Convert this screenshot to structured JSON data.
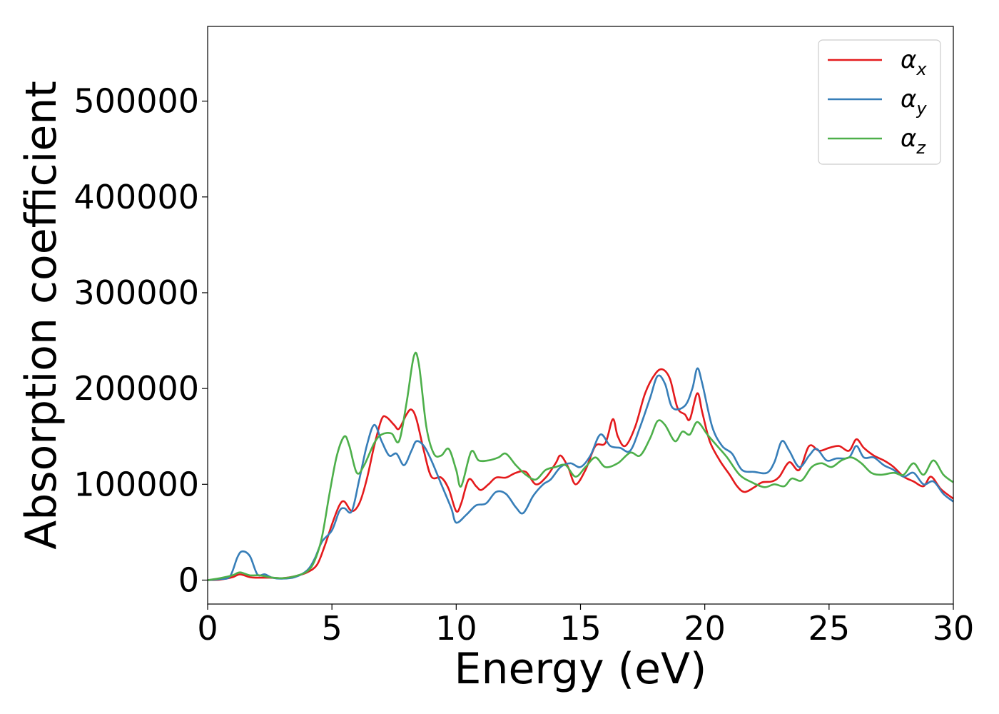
{
  "chart_data": {
    "type": "line",
    "title": "",
    "xlabel": "Energy (eV)",
    "ylabel": "Absorption coefficient",
    "xlim": [
      0,
      30
    ],
    "ylim": [
      -25000,
      578000
    ],
    "xticks": [
      0,
      5,
      10,
      15,
      20,
      25,
      30
    ],
    "yticks": [
      0,
      100000,
      200000,
      300000,
      400000,
      500000
    ],
    "grid": false,
    "legend_position": "top-right",
    "series": [
      {
        "name": "α_x",
        "legend_base": "α",
        "legend_sub": "x",
        "color": "#e41a1c",
        "points": [
          [
            0,
            0
          ],
          [
            0.5,
            500
          ],
          [
            1,
            3000
          ],
          [
            1.3,
            6000
          ],
          [
            1.7,
            3000
          ],
          [
            2,
            2500
          ],
          [
            2.5,
            2500
          ],
          [
            3,
            2000
          ],
          [
            3.5,
            4000
          ],
          [
            4,
            8000
          ],
          [
            4.4,
            16000
          ],
          [
            4.7,
            35000
          ],
          [
            5,
            58000
          ],
          [
            5.3,
            78000
          ],
          [
            5.5,
            82000
          ],
          [
            5.8,
            72000
          ],
          [
            6.1,
            80000
          ],
          [
            6.4,
            105000
          ],
          [
            6.7,
            140000
          ],
          [
            7,
            168000
          ],
          [
            7.2,
            170000
          ],
          [
            7.5,
            162000
          ],
          [
            7.7,
            158000
          ],
          [
            8,
            173000
          ],
          [
            8.2,
            178000
          ],
          [
            8.4,
            168000
          ],
          [
            8.7,
            135000
          ],
          [
            9,
            108000
          ],
          [
            9.4,
            107000
          ],
          [
            9.7,
            95000
          ],
          [
            10,
            72000
          ],
          [
            10.2,
            80000
          ],
          [
            10.5,
            105000
          ],
          [
            10.8,
            98000
          ],
          [
            11,
            94000
          ],
          [
            11.3,
            100000
          ],
          [
            11.6,
            107000
          ],
          [
            12,
            107000
          ],
          [
            12.4,
            112000
          ],
          [
            12.8,
            113000
          ],
          [
            13.2,
            100000
          ],
          [
            13.6,
            107000
          ],
          [
            14,
            122000
          ],
          [
            14.2,
            130000
          ],
          [
            14.5,
            118000
          ],
          [
            14.8,
            100000
          ],
          [
            15.2,
            115000
          ],
          [
            15.6,
            140000
          ],
          [
            16,
            143000
          ],
          [
            16.3,
            168000
          ],
          [
            16.5,
            150000
          ],
          [
            16.8,
            140000
          ],
          [
            17.2,
            160000
          ],
          [
            17.6,
            195000
          ],
          [
            18,
            215000
          ],
          [
            18.3,
            220000
          ],
          [
            18.6,
            210000
          ],
          [
            18.9,
            180000
          ],
          [
            19.2,
            173000
          ],
          [
            19.4,
            168000
          ],
          [
            19.7,
            195000
          ],
          [
            19.9,
            175000
          ],
          [
            20.2,
            145000
          ],
          [
            20.6,
            125000
          ],
          [
            21,
            110000
          ],
          [
            21.3,
            98000
          ],
          [
            21.6,
            92000
          ],
          [
            22,
            97000
          ],
          [
            22.3,
            102000
          ],
          [
            22.7,
            103000
          ],
          [
            23,
            108000
          ],
          [
            23.4,
            123000
          ],
          [
            23.8,
            115000
          ],
          [
            24.2,
            140000
          ],
          [
            24.6,
            135000
          ],
          [
            25,
            138000
          ],
          [
            25.4,
            140000
          ],
          [
            25.8,
            135000
          ],
          [
            26.1,
            147000
          ],
          [
            26.4,
            138000
          ],
          [
            26.8,
            130000
          ],
          [
            27.2,
            125000
          ],
          [
            27.6,
            118000
          ],
          [
            28,
            108000
          ],
          [
            28.4,
            103000
          ],
          [
            28.8,
            98000
          ],
          [
            29.1,
            108000
          ],
          [
            29.5,
            95000
          ],
          [
            30,
            85000
          ]
        ]
      },
      {
        "name": "α_y",
        "legend_base": "α",
        "legend_sub": "y",
        "color": "#377eb8",
        "points": [
          [
            0,
            0
          ],
          [
            0.5,
            1000
          ],
          [
            0.9,
            4000
          ],
          [
            1.2,
            24000
          ],
          [
            1.4,
            30000
          ],
          [
            1.7,
            25000
          ],
          [
            2,
            6000
          ],
          [
            2.3,
            6000
          ],
          [
            2.6,
            2500
          ],
          [
            3,
            1500
          ],
          [
            3.5,
            3000
          ],
          [
            4,
            10000
          ],
          [
            4.3,
            22000
          ],
          [
            4.6,
            40000
          ],
          [
            5,
            52000
          ],
          [
            5.3,
            72000
          ],
          [
            5.5,
            75000
          ],
          [
            5.8,
            72000
          ],
          [
            6.1,
            105000
          ],
          [
            6.4,
            140000
          ],
          [
            6.7,
            162000
          ],
          [
            7,
            145000
          ],
          [
            7.3,
            130000
          ],
          [
            7.6,
            132000
          ],
          [
            7.9,
            120000
          ],
          [
            8.2,
            135000
          ],
          [
            8.4,
            145000
          ],
          [
            8.7,
            140000
          ],
          [
            9,
            125000
          ],
          [
            9.4,
            100000
          ],
          [
            9.8,
            75000
          ],
          [
            10,
            60000
          ],
          [
            10.4,
            68000
          ],
          [
            10.8,
            78000
          ],
          [
            11.2,
            80000
          ],
          [
            11.6,
            92000
          ],
          [
            12,
            90000
          ],
          [
            12.4,
            76000
          ],
          [
            12.7,
            70000
          ],
          [
            13.1,
            88000
          ],
          [
            13.5,
            100000
          ],
          [
            13.8,
            105000
          ],
          [
            14.2,
            118000
          ],
          [
            14.6,
            122000
          ],
          [
            15,
            118000
          ],
          [
            15.4,
            130000
          ],
          [
            15.8,
            152000
          ],
          [
            16.2,
            140000
          ],
          [
            16.6,
            138000
          ],
          [
            17,
            135000
          ],
          [
            17.4,
            160000
          ],
          [
            17.8,
            190000
          ],
          [
            18.1,
            213000
          ],
          [
            18.4,
            205000
          ],
          [
            18.7,
            180000
          ],
          [
            19.2,
            182000
          ],
          [
            19.5,
            200000
          ],
          [
            19.7,
            221000
          ],
          [
            19.9,
            205000
          ],
          [
            20.3,
            160000
          ],
          [
            20.7,
            140000
          ],
          [
            21.1,
            132000
          ],
          [
            21.5,
            115000
          ],
          [
            22,
            113000
          ],
          [
            22.5,
            112000
          ],
          [
            22.8,
            123000
          ],
          [
            23.1,
            145000
          ],
          [
            23.4,
            135000
          ],
          [
            23.8,
            118000
          ],
          [
            24.2,
            130000
          ],
          [
            24.5,
            137000
          ],
          [
            24.9,
            125000
          ],
          [
            25.3,
            127000
          ],
          [
            25.8,
            128000
          ],
          [
            26.1,
            140000
          ],
          [
            26.4,
            128000
          ],
          [
            26.8,
            128000
          ],
          [
            27.2,
            120000
          ],
          [
            27.6,
            115000
          ],
          [
            28,
            108000
          ],
          [
            28.4,
            112000
          ],
          [
            28.8,
            100000
          ],
          [
            29.2,
            103000
          ],
          [
            29.6,
            90000
          ],
          [
            30,
            82000
          ]
        ]
      },
      {
        "name": "α_z",
        "legend_base": "α",
        "legend_sub": "z",
        "color": "#4daf4a",
        "points": [
          [
            0,
            0
          ],
          [
            0.5,
            2000
          ],
          [
            1,
            5000
          ],
          [
            1.3,
            8000
          ],
          [
            1.7,
            5000
          ],
          [
            2.1,
            5000
          ],
          [
            2.5,
            3000
          ],
          [
            3,
            2000
          ],
          [
            3.5,
            4000
          ],
          [
            4,
            9000
          ],
          [
            4.3,
            20000
          ],
          [
            4.6,
            45000
          ],
          [
            4.9,
            90000
          ],
          [
            5.2,
            130000
          ],
          [
            5.5,
            150000
          ],
          [
            5.7,
            140000
          ],
          [
            6,
            112000
          ],
          [
            6.3,
            120000
          ],
          [
            6.7,
            143000
          ],
          [
            7,
            152000
          ],
          [
            7.4,
            153000
          ],
          [
            7.7,
            145000
          ],
          [
            8,
            185000
          ],
          [
            8.3,
            234000
          ],
          [
            8.5,
            225000
          ],
          [
            8.8,
            160000
          ],
          [
            9.1,
            132000
          ],
          [
            9.4,
            130000
          ],
          [
            9.7,
            137000
          ],
          [
            10,
            115000
          ],
          [
            10.2,
            98000
          ],
          [
            10.6,
            134000
          ],
          [
            10.9,
            125000
          ],
          [
            11.3,
            125000
          ],
          [
            11.7,
            128000
          ],
          [
            12,
            132000
          ],
          [
            12.4,
            120000
          ],
          [
            12.8,
            110000
          ],
          [
            13.2,
            105000
          ],
          [
            13.6,
            115000
          ],
          [
            14,
            118000
          ],
          [
            14.4,
            120000
          ],
          [
            14.8,
            108000
          ],
          [
            15.2,
            118000
          ],
          [
            15.6,
            128000
          ],
          [
            16,
            118000
          ],
          [
            16.5,
            122000
          ],
          [
            17,
            133000
          ],
          [
            17.4,
            130000
          ],
          [
            17.8,
            148000
          ],
          [
            18.1,
            166000
          ],
          [
            18.4,
            162000
          ],
          [
            18.8,
            145000
          ],
          [
            19.1,
            155000
          ],
          [
            19.4,
            152000
          ],
          [
            19.7,
            165000
          ],
          [
            20.1,
            152000
          ],
          [
            20.5,
            140000
          ],
          [
            20.9,
            128000
          ],
          [
            21.4,
            110000
          ],
          [
            21.9,
            102000
          ],
          [
            22.4,
            97000
          ],
          [
            22.8,
            100000
          ],
          [
            23.2,
            98000
          ],
          [
            23.5,
            106000
          ],
          [
            23.9,
            104000
          ],
          [
            24.3,
            118000
          ],
          [
            24.7,
            122000
          ],
          [
            25.1,
            118000
          ],
          [
            25.5,
            125000
          ],
          [
            25.9,
            128000
          ],
          [
            26.3,
            122000
          ],
          [
            26.7,
            112000
          ],
          [
            27.1,
            110000
          ],
          [
            27.6,
            112000
          ],
          [
            28,
            110000
          ],
          [
            28.4,
            122000
          ],
          [
            28.8,
            110000
          ],
          [
            29.2,
            125000
          ],
          [
            29.6,
            110000
          ],
          [
            30,
            102000
          ]
        ]
      }
    ]
  }
}
